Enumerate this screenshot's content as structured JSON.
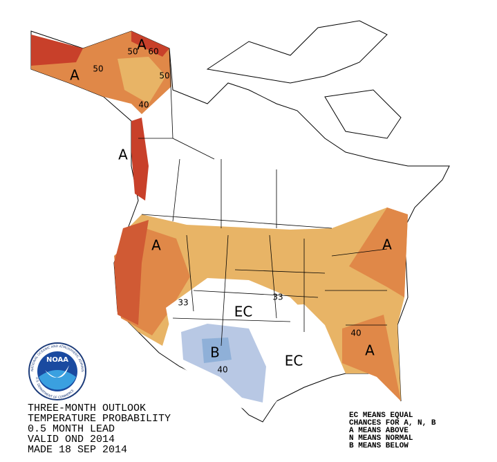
{
  "outlook_text": [
    "THREE-MONTH OUTLOOK",
    "TEMPERATURE PROBABILITY",
    "0.5 MONTH LEAD",
    "VALID OND 2014",
    "MADE 18 SEP 2014"
  ],
  "legend_text": [
    "EC MEANS EQUAL",
    "CHANCES FOR A, N, B",
    "A MEANS ABOVE",
    "N MEANS NORMAL",
    "B MEANS BELOW"
  ],
  "logo": {
    "name": "NOAA",
    "ring_top": "NATIONAL OCEANIC AND ATMOSPHERIC ADMINISTRATION",
    "ring_bottom": "U.S. DEPARTMENT OF COMMERCE"
  },
  "map_labels": [
    "A",
    "A",
    "50",
    "60",
    "50",
    "50",
    "40",
    "A",
    "A",
    "A",
    "A",
    "33",
    "33",
    "EC",
    "EC",
    "B",
    "40",
    "40"
  ]
}
